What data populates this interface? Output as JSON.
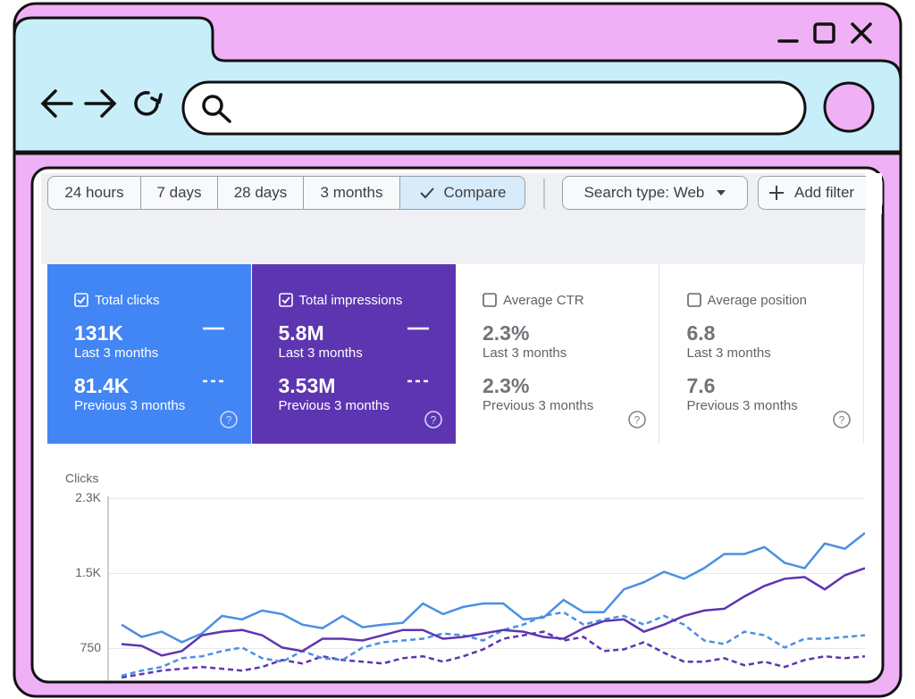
{
  "toolbar": {
    "ranges": [
      "24 hours",
      "7 days",
      "28 days",
      "3 months"
    ],
    "compare": "Compare",
    "search_type": "Search type: Web",
    "add_filter": "Add filter"
  },
  "metrics": [
    {
      "label": "Total clicks",
      "current": "131K",
      "current_period": "Last 3 months",
      "previous": "81.4K",
      "previous_period": "Previous 3 months"
    },
    {
      "label": "Total impressions",
      "current": "5.8M",
      "current_period": "Last 3 months",
      "previous": "3.53M",
      "previous_period": "Previous 3 months"
    },
    {
      "label": "Average CTR",
      "current": "2.3%",
      "current_period": "Last 3 months",
      "previous": "2.3%",
      "previous_period": "Previous 3 months"
    },
    {
      "label": "Average position",
      "current": "6.8",
      "current_period": "Last 3 months",
      "previous": "7.6",
      "previous_period": "Previous 3 months"
    }
  ],
  "chart_data": {
    "type": "line",
    "y_label": "Clicks",
    "ylim": [
      450,
      2280
    ],
    "yticks": [
      750,
      {
        "value": 1500,
        "label": "1.5K"
      },
      {
        "value": 2250,
        "label": "2.3K"
      }
    ],
    "grid": true,
    "series": [
      {
        "color": "#5e35b1",
        "dashed": true,
        "values": [
          460,
          494,
          529,
          547,
          565,
          547,
          529,
          565,
          635,
          600,
          671,
          635,
          618,
          600,
          653,
          671,
          618,
          671,
          741,
          847,
          882,
          918,
          829,
          865,
          724,
          741,
          812,
          706,
          618,
          618,
          653,
          582,
          618,
          565,
          635,
          671,
          653,
          671
        ]
      },
      {
        "color": "#4a90e2",
        "dashed": true,
        "values": [
          477,
          529,
          565,
          653,
          671,
          724,
          759,
          653,
          618,
          724,
          653,
          635,
          759,
          812,
          829,
          847,
          900,
          882,
          829,
          935,
          988,
          1076,
          1112,
          988,
          1041,
          1076,
          988,
          1076,
          988,
          829,
          794,
          918,
          882,
          759,
          847,
          847,
          865,
          882
        ]
      },
      {
        "color": "#5e35b1",
        "dashed": false,
        "values": [
          794,
          776,
          679,
          724,
          882,
          918,
          935,
          882,
          759,
          724,
          847,
          847,
          829,
          882,
          935,
          935,
          847,
          865,
          900,
          935,
          918,
          865,
          847,
          953,
          1023,
          1041,
          918,
          988,
          1076,
          1129,
          1147,
          1270,
          1376,
          1447,
          1464,
          1341,
          1482,
          1553
        ]
      },
      {
        "color": "#4a90e2",
        "dashed": false,
        "values": [
          988,
          865,
          918,
          812,
          900,
          1076,
          1041,
          1129,
          1094,
          988,
          953,
          1076,
          962,
          988,
          1006,
          1200,
          1094,
          1165,
          1200,
          1200,
          1041,
          1059,
          1235,
          1112,
          1112,
          1341,
          1412,
          1517,
          1447,
          1553,
          1694,
          1694,
          1764,
          1606,
          1553,
          1800,
          1747,
          1905
        ]
      }
    ]
  }
}
